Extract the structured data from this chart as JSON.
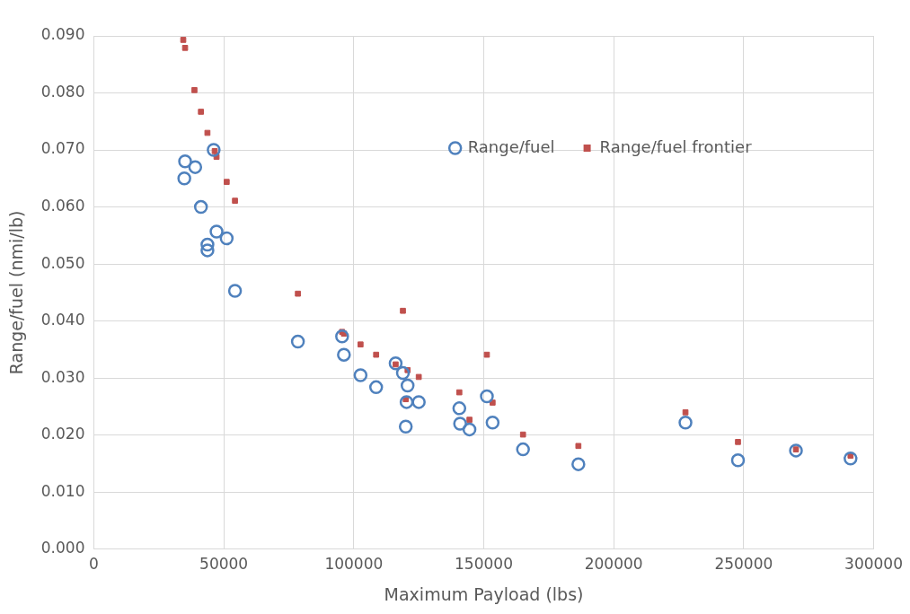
{
  "chart_data": {
    "type": "scatter",
    "xlabel": "Maximum Payload (lbs)",
    "ylabel": "Range/fuel (nmi/lb)",
    "xlim": [
      0,
      300000
    ],
    "xticks": [
      0,
      50000,
      100000,
      150000,
      200000,
      250000,
      300000
    ],
    "ylim": [
      0,
      0.09
    ],
    "yticks": [
      {
        "value": 0,
        "label": "0.000"
      },
      {
        "value": 0.01,
        "label": "0.010"
      },
      {
        "value": 0.02,
        "label": "0.020"
      },
      {
        "value": 0.03,
        "label": "0.030"
      },
      {
        "value": 0.04,
        "label": "0.040"
      },
      {
        "value": 0.05,
        "label": "0.050"
      },
      {
        "value": 0.06,
        "label": "0.060"
      },
      {
        "value": 0.07,
        "label": "0.070"
      },
      {
        "value": 0.08,
        "label": "0.080"
      },
      {
        "value": 0.09,
        "label": "0.090"
      }
    ],
    "grid": true,
    "legend": "top right",
    "series": [
      {
        "name": "Range/fuel",
        "color": "#4f81bd",
        "marker": "circle",
        "x": [
          34800,
          35100,
          39000,
          41200,
          46100,
          47200,
          43700,
          43700,
          51100,
          54300,
          78500,
          95500,
          96200,
          102600,
          108600,
          116100,
          118900,
          120700,
          120300,
          125000,
          120000,
          140600,
          140900,
          144500,
          151200,
          153400,
          165100,
          186400,
          227600,
          247800,
          270100,
          291100
        ],
        "values": [
          0.065,
          0.068,
          0.067,
          0.06,
          0.07,
          0.0557,
          0.0534,
          0.0524,
          0.0545,
          0.0453,
          0.0364,
          0.0373,
          0.0341,
          0.0305,
          0.0284,
          0.0326,
          0.0309,
          0.0287,
          0.0258,
          0.0258,
          0.0215,
          0.0247,
          0.022,
          0.021,
          0.0268,
          0.0222,
          0.0175,
          0.0149,
          0.0222,
          0.0156,
          0.0173,
          0.0159
        ]
      },
      {
        "name": "Range/fuel frontier",
        "color": "#c0504d",
        "marker": "square",
        "x": [
          34400,
          35100,
          38700,
          41200,
          43700,
          46500,
          47200,
          51100,
          54300,
          78500,
          95500,
          96200,
          102600,
          108600,
          116100,
          118900,
          120700,
          125000,
          120000,
          140600,
          144500,
          151200,
          153400,
          165100,
          186400,
          227600,
          247800,
          270100,
          291100
        ],
        "values": [
          0.0893,
          0.0879,
          0.0805,
          0.0767,
          0.073,
          0.0698,
          0.0688,
          0.0644,
          0.0611,
          0.0448,
          0.0381,
          0.0378,
          0.0359,
          0.0341,
          0.0324,
          0.0418,
          0.0314,
          0.0302,
          0.0263,
          0.0275,
          0.0227,
          0.0341,
          0.0257,
          0.0201,
          0.0181,
          0.024,
          0.0188,
          0.0175,
          0.0164
        ]
      }
    ]
  }
}
